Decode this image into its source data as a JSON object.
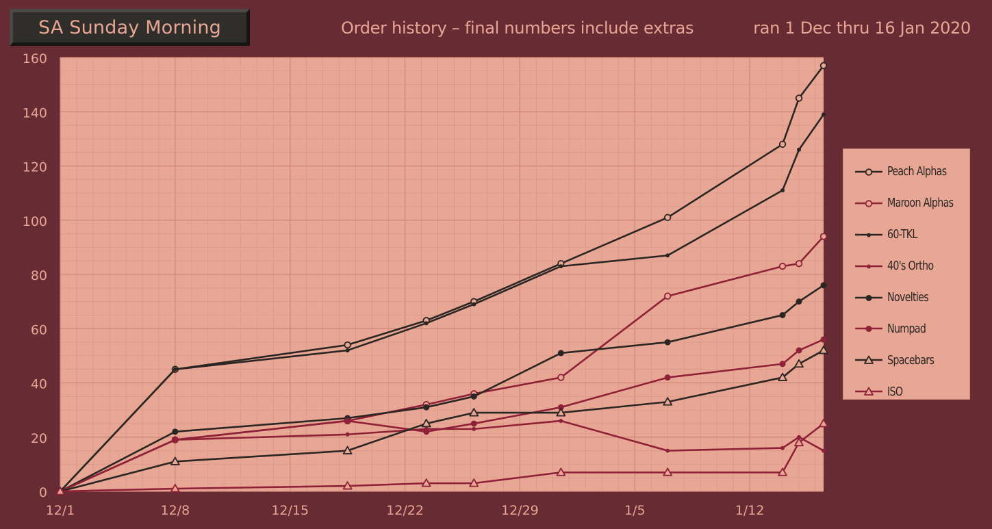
{
  "header": {
    "title": "SA Sunday Morning",
    "subtitle": "Order history – final numbers include extras",
    "date_range": "ran 1 Dec thru 16 Jan 2020"
  },
  "colors": {
    "background": "#672b33",
    "plot_bg": "#e8a794",
    "dark": "#2b2623",
    "maroon": "#8e2138",
    "text": "#e8a594"
  },
  "chart_data": {
    "type": "line",
    "title": "Order history – final numbers include extras",
    "xlabel": "",
    "ylabel": "",
    "xlim": [
      0,
      46.5
    ],
    "ylim": [
      0,
      160
    ],
    "x_ticks": [
      {
        "label": "12/1",
        "x": 0
      },
      {
        "label": "12/8",
        "x": 7
      },
      {
        "label": "12/15",
        "x": 14
      },
      {
        "label": "12/22",
        "x": 21
      },
      {
        "label": "12/29",
        "x": 28
      },
      {
        "label": "1/5",
        "x": 35
      },
      {
        "label": "1/12",
        "x": 42
      }
    ],
    "y_ticks": [
      0,
      20,
      40,
      60,
      80,
      100,
      120,
      140,
      160
    ],
    "grid": true,
    "legend_position": "right",
    "series": [
      {
        "name": "Peach Alphas",
        "color": "#2b2623",
        "marker": "open-circle",
        "x": [
          0,
          7,
          17.5,
          22.3,
          25.2,
          30.5,
          37,
          44,
          45,
          46.5
        ],
        "y": [
          0,
          45,
          54,
          63,
          70,
          84,
          101,
          128,
          145,
          157
        ]
      },
      {
        "name": "Maroon Alphas",
        "color": "#8e2138",
        "marker": "open-circle",
        "x": [
          0,
          7,
          17.5,
          22.3,
          25.2,
          30.5,
          37,
          44,
          45,
          46.5
        ],
        "y": [
          0,
          19,
          26,
          32,
          36,
          42,
          72,
          83,
          84,
          94
        ]
      },
      {
        "name": "60-TKL",
        "color": "#2b2623",
        "marker": "dot",
        "x": [
          0,
          7,
          17.5,
          22.3,
          25.2,
          30.5,
          37,
          44,
          45,
          46.5
        ],
        "y": [
          0,
          45,
          52,
          62,
          69,
          83,
          87,
          111,
          126,
          139
        ]
      },
      {
        "name": "40's Ortho",
        "color": "#8e2138",
        "marker": "dot",
        "x": [
          0,
          7,
          17.5,
          22.3,
          25.2,
          30.5,
          37,
          44,
          45,
          46.5
        ],
        "y": [
          0,
          19,
          21,
          23,
          23,
          26,
          15,
          16,
          20,
          15
        ]
      },
      {
        "name": "Novelties",
        "color": "#2b2623",
        "marker": "filled-circle",
        "x": [
          0,
          7,
          17.5,
          22.3,
          25.2,
          30.5,
          37,
          44,
          45,
          46.5
        ],
        "y": [
          0,
          22,
          27,
          31,
          35,
          51,
          55,
          65,
          70,
          76
        ]
      },
      {
        "name": "Numpad",
        "color": "#8e2138",
        "marker": "filled-circle",
        "x": [
          0,
          7,
          17.5,
          22.3,
          25.2,
          30.5,
          37,
          44,
          45,
          46.5
        ],
        "y": [
          0,
          19,
          26,
          22,
          25,
          31,
          42,
          47,
          52,
          56
        ]
      },
      {
        "name": "Spacebars",
        "color": "#2b2623",
        "marker": "open-triangle",
        "x": [
          0,
          7,
          17.5,
          22.3,
          25.2,
          30.5,
          37,
          44,
          45,
          46.5
        ],
        "y": [
          0,
          11,
          15,
          25,
          29,
          29,
          33,
          42,
          47,
          52
        ]
      },
      {
        "name": "ISO",
        "color": "#8e2138",
        "marker": "open-triangle",
        "x": [
          0,
          7,
          17.5,
          22.3,
          25.2,
          30.5,
          37,
          44,
          45,
          46.5
        ],
        "y": [
          0,
          1,
          2,
          3,
          3,
          7,
          7,
          7,
          18,
          25
        ]
      }
    ]
  }
}
